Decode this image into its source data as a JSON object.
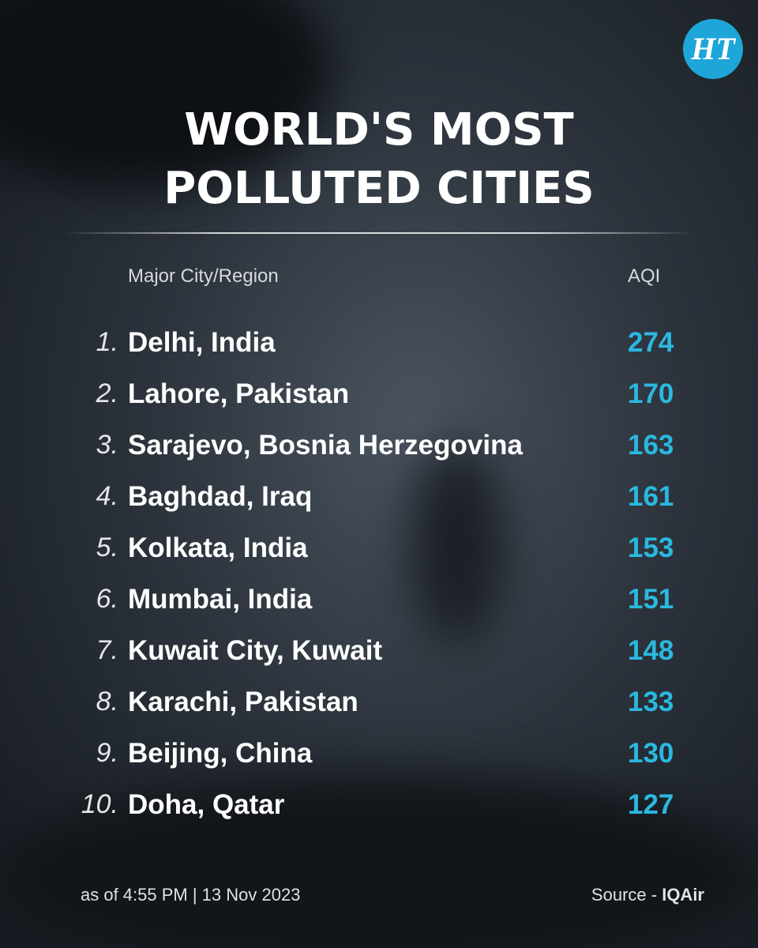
{
  "header": {
    "logo": "HT",
    "title_lines": [
      "WORLD'S MOST",
      "POLLUTED CITIES"
    ]
  },
  "table": {
    "columns": [
      "Major City/Region",
      "AQI"
    ],
    "rows": [
      [
        "1.",
        "Delhi, India",
        "274"
      ],
      [
        "2.",
        "Lahore, Pakistan",
        "170"
      ],
      [
        "3.",
        "Sarajevo, Bosnia Herzegovina",
        "163"
      ],
      [
        "4.",
        "Baghdad, Iraq",
        "161"
      ],
      [
        "5.",
        "Kolkata, India",
        "153"
      ],
      [
        "6.",
        "Mumbai, India",
        "151"
      ],
      [
        "7.",
        "Kuwait City, Kuwait",
        "148"
      ],
      [
        "8.",
        "Karachi, Pakistan",
        "133"
      ],
      [
        "9.",
        "Beijing, China",
        "130"
      ],
      [
        "10.",
        "Doha, Qatar",
        "127"
      ]
    ]
  },
  "footer": {
    "timestamp": "as of 4:55 PM | 13 Nov 2023",
    "source_label": "Source -",
    "source": "IQAir"
  }
}
